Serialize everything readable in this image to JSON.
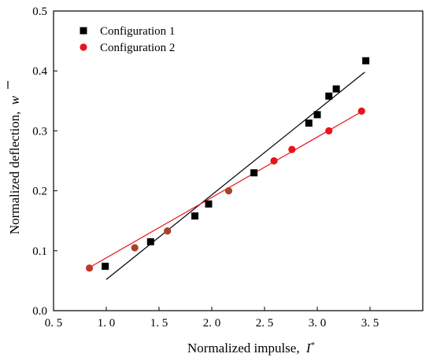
{
  "chart_data": {
    "type": "scatter",
    "xlabel": "Normalized impulse,",
    "xlabel_symbol": "I",
    "xlabel_sup": "*",
    "ylabel": "Normalized deflection,",
    "ylabel_symbol": "w",
    "xlim": [
      0.5,
      4.0
    ],
    "ylim": [
      0.0,
      0.5
    ],
    "xticks": [
      0.5,
      1.0,
      1.5,
      2.0,
      2.5,
      3.0,
      3.5
    ],
    "xtick_labels": [
      "0. 5",
      "1. 0",
      "1. 5",
      "2. 0",
      "2. 5",
      "3. 0",
      "3. 5"
    ],
    "yticks": [
      0.0,
      0.1,
      0.2,
      0.3,
      0.4,
      0.5
    ],
    "ytick_labels": [
      "0.0",
      "0.1",
      "0.2",
      "0.3",
      "0.4",
      "0.5"
    ],
    "legend_position": "top-left",
    "series": [
      {
        "name": "Configuration 1",
        "marker": "square",
        "color": "#000000",
        "fit_color": "#000000",
        "x": [
          0.99,
          1.42,
          1.84,
          1.97,
          2.4,
          2.92,
          3.0,
          3.11,
          3.18,
          3.46
        ],
        "y": [
          0.074,
          0.115,
          0.158,
          0.178,
          0.23,
          0.313,
          0.327,
          0.358,
          0.37,
          0.417
        ],
        "fit_line": {
          "x": [
            1.0,
            3.45
          ],
          "y": [
            0.052,
            0.398
          ]
        }
      },
      {
        "name": "Configuration 2",
        "marker": "circle",
        "color": "#e8141a",
        "fit_color": "#e8141a",
        "x": [
          0.84,
          1.27,
          1.58,
          2.16,
          2.59,
          2.76,
          3.11,
          3.42
        ],
        "y": [
          0.071,
          0.105,
          0.133,
          0.2,
          0.25,
          0.269,
          0.3,
          0.333
        ],
        "point_colors": [
          "#c0392b",
          "#a5432b",
          "#a5432b",
          "#a5432b",
          "#e8141a",
          "#e8141a",
          "#e8141a",
          "#e8141a"
        ],
        "fit_line": {
          "x": [
            0.84,
            3.42
          ],
          "y": [
            0.072,
            0.332
          ]
        }
      }
    ]
  }
}
